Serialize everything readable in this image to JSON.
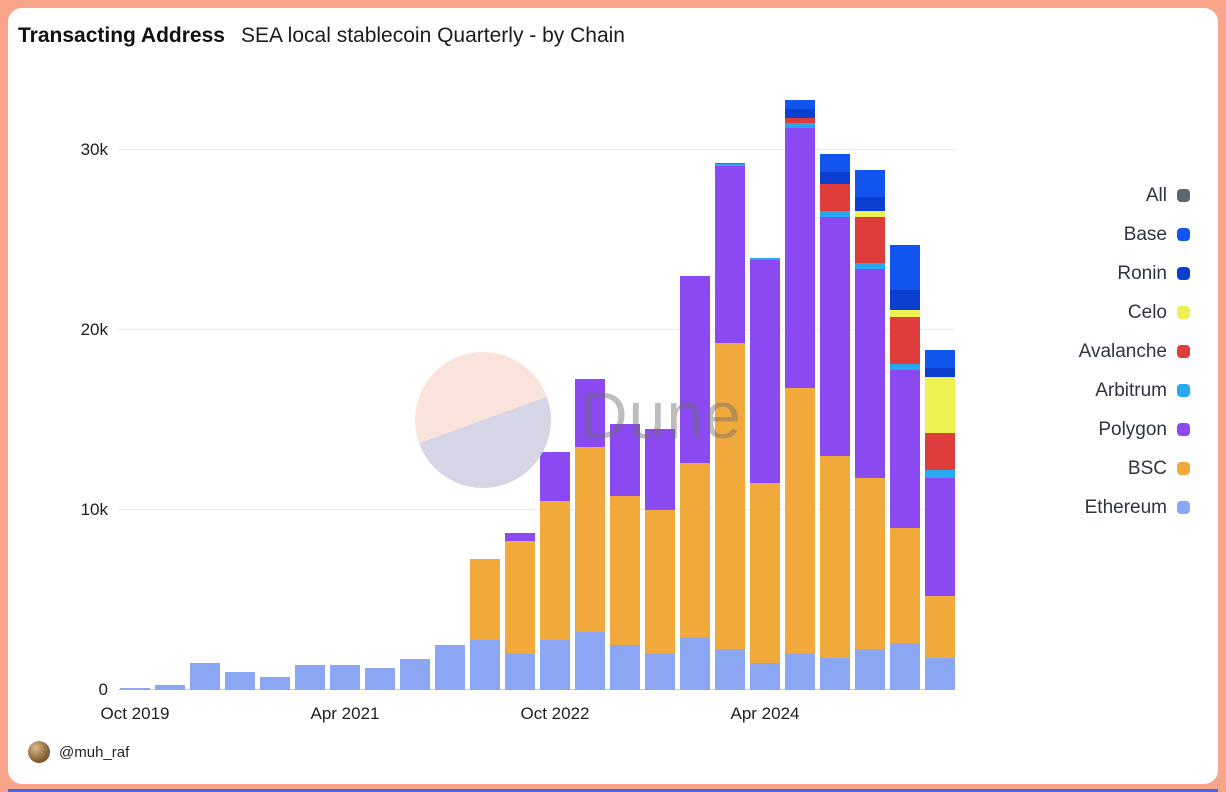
{
  "page": {
    "background_color": "#f9a58c",
    "card_color": "#ffffff",
    "accent_line_color": "#4166e8"
  },
  "header": {
    "title": "Transacting Address",
    "subtitle": "SEA local stablecoin Quarterly - by Chain"
  },
  "watermark": {
    "text": "Dune"
  },
  "footer": {
    "handle": "@muh_raf"
  },
  "legend": [
    {
      "label": "All",
      "color": "#5d6570"
    },
    {
      "label": "Base",
      "color": "#1155ee"
    },
    {
      "label": "Ronin",
      "color": "#0c3fd0"
    },
    {
      "label": "Celo",
      "color": "#edf153"
    },
    {
      "label": "Avalanche",
      "color": "#de3d3b"
    },
    {
      "label": "Arbitrum",
      "color": "#29a8f2"
    },
    {
      "label": "Polygon",
      "color": "#8b49f2"
    },
    {
      "label": "BSC",
      "color": "#f2a93c"
    },
    {
      "label": "Ethereum",
      "color": "#8ba7f4"
    }
  ],
  "chart_data": {
    "type": "bar",
    "stacked": true,
    "title": "Transacting Address",
    "subtitle": "SEA local stablecoin Quarterly - by Chain",
    "grid": true,
    "legend_position": "right",
    "ylim": [
      0,
      33000
    ],
    "y_ticks": [
      0,
      10000,
      20000,
      30000
    ],
    "y_tick_labels": [
      "0",
      "10k",
      "20k",
      "30k"
    ],
    "x_axis": {
      "ticks": [
        {
          "index": 0,
          "label": "Oct 2019"
        },
        {
          "index": 6,
          "label": "Apr 2021"
        },
        {
          "index": 12,
          "label": "Oct 2022"
        },
        {
          "index": 18,
          "label": "Apr 2024"
        }
      ]
    },
    "categories": [
      "Oct 2019",
      "Jan 2020",
      "Apr 2020",
      "Jul 2020",
      "Oct 2020",
      "Jan 2021",
      "Apr 2021",
      "Jul 2021",
      "Oct 2021",
      "Jan 2022",
      "Apr 2022",
      "Jul 2022",
      "Oct 2022",
      "Jan 2023",
      "Apr 2023",
      "Jul 2023",
      "Oct 2023",
      "Jan 2024",
      "Apr 2024",
      "Jul 2024",
      "Oct 2024",
      "Jan 2025",
      "Apr 2025",
      "Jul 2025"
    ],
    "series": [
      {
        "name": "Ethereum",
        "color": "#8ba7f4",
        "values": [
          100,
          300,
          1500,
          1000,
          700,
          1400,
          1400,
          1250,
          1700,
          2500,
          2800,
          2000,
          2800,
          3200,
          2500,
          2000,
          2900,
          2300,
          1500,
          2000,
          1800,
          2300,
          2600,
          1800
        ]
      },
      {
        "name": "BSC",
        "color": "#f2a93c",
        "values": [
          0,
          0,
          0,
          0,
          0,
          0,
          0,
          0,
          0,
          0,
          4500,
          6300,
          7700,
          10300,
          8300,
          8000,
          9700,
          17000,
          10000,
          14800,
          11200,
          9500,
          6400,
          3400
        ]
      },
      {
        "name": "Polygon",
        "color": "#8b49f2",
        "values": [
          0,
          0,
          0,
          0,
          0,
          0,
          0,
          0,
          0,
          0,
          0,
          400,
          2700,
          3800,
          4000,
          4500,
          10400,
          9800,
          12400,
          14400,
          13300,
          11600,
          8800,
          6600
        ]
      },
      {
        "name": "Arbitrum",
        "color": "#29a8f2",
        "values": [
          0,
          0,
          0,
          0,
          0,
          0,
          0,
          0,
          0,
          0,
          0,
          0,
          0,
          0,
          0,
          0,
          0,
          100,
          100,
          300,
          300,
          300,
          300,
          400
        ]
      },
      {
        "name": "Avalanche",
        "color": "#de3d3b",
        "values": [
          0,
          0,
          0,
          0,
          0,
          0,
          0,
          0,
          0,
          0,
          0,
          0,
          0,
          0,
          0,
          0,
          0,
          100,
          0,
          300,
          1500,
          2600,
          2600,
          2100
        ]
      },
      {
        "name": "Celo",
        "color": "#edf153",
        "values": [
          0,
          0,
          0,
          0,
          0,
          0,
          0,
          0,
          0,
          0,
          0,
          0,
          0,
          0,
          0,
          0,
          0,
          0,
          0,
          0,
          0,
          300,
          400,
          3100
        ]
      },
      {
        "name": "Ronin",
        "color": "#0c3fd0",
        "values": [
          0,
          0,
          0,
          0,
          0,
          0,
          0,
          0,
          0,
          0,
          0,
          0,
          0,
          0,
          0,
          0,
          0,
          0,
          0,
          500,
          700,
          800,
          1100,
          500
        ]
      },
      {
        "name": "Base",
        "color": "#1155ee",
        "values": [
          0,
          0,
          0,
          0,
          0,
          0,
          0,
          0,
          0,
          0,
          0,
          0,
          0,
          0,
          0,
          0,
          0,
          0,
          0,
          500,
          1000,
          1500,
          2500,
          1000
        ]
      }
    ]
  }
}
